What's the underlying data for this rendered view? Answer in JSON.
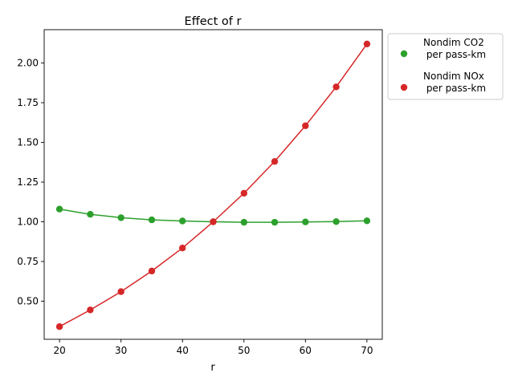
{
  "chart_data": {
    "type": "line",
    "title": "Effect of r",
    "xlabel": "r",
    "ylabel": "",
    "xlim": [
      17.5,
      72.5
    ],
    "ylim": [
      0.26,
      2.21
    ],
    "x_ticks": [
      20,
      30,
      40,
      50,
      60,
      70
    ],
    "y_ticks": [
      0.5,
      0.75,
      1.0,
      1.25,
      1.5,
      1.75,
      2.0
    ],
    "y_tick_labels": [
      "0.50",
      "0.75",
      "1.00",
      "1.25",
      "1.50",
      "1.75",
      "2.00"
    ],
    "x": [
      20,
      25,
      30,
      35,
      40,
      45,
      50,
      55,
      60,
      65,
      70
    ],
    "series": [
      {
        "name": "Nondim CO2\n per pass-km",
        "color": "#2ca02c",
        "values": [
          1.08,
          1.047,
          1.026,
          1.012,
          1.005,
          1.0,
          0.997,
          0.997,
          0.999,
          1.001,
          1.006
        ]
      },
      {
        "name": "Nondim NOx\n per pass-km",
        "color": "#d62728",
        "values": [
          0.34,
          0.445,
          0.56,
          0.69,
          0.835,
          1.0,
          1.18,
          1.38,
          1.605,
          1.85,
          2.12
        ]
      }
    ],
    "grid": false,
    "legend_position": "outside-top-right"
  }
}
